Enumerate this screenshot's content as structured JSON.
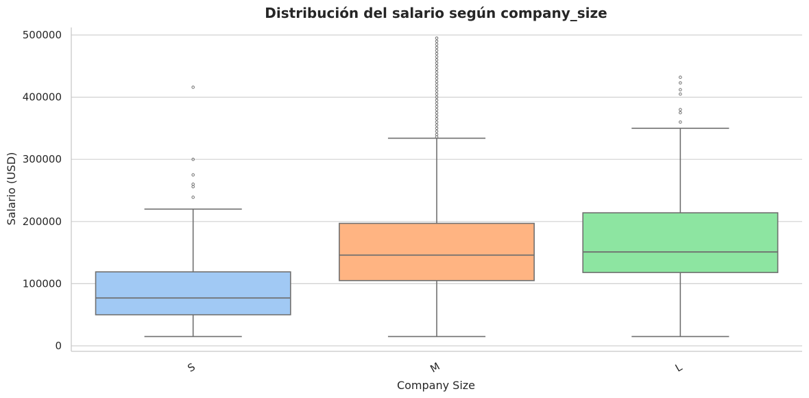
{
  "chart_data": {
    "type": "box",
    "title": "Distribución del salario según company_size",
    "xlabel": "Company Size",
    "ylabel": "Salario (USD)",
    "ylim": [
      -10000,
      520000
    ],
    "yticks": [
      0,
      100000,
      200000,
      300000,
      400000,
      500000
    ],
    "ytick_labels": [
      "0",
      "100000",
      "200000",
      "300000",
      "400000",
      "500000"
    ],
    "grid": "horizontal",
    "categories": [
      "S",
      "M",
      "L"
    ],
    "series": [
      {
        "category": "S",
        "color": "#a1c9f4",
        "whisker_low": 15000,
        "q1": 50000,
        "median": 77000,
        "q3": 119000,
        "whisker_high": 220000,
        "outliers": [
          239000,
          256000,
          260000,
          275000,
          300000,
          416000
        ]
      },
      {
        "category": "M",
        "color": "#ffb482",
        "whisker_low": 15000,
        "q1": 105000,
        "median": 146000,
        "q3": 197000,
        "whisker_high": 334000,
        "outliers": [
          336000,
          340000,
          345000,
          350000,
          355000,
          360000,
          365000,
          370000,
          375000,
          380000,
          385000,
          390000,
          395000,
          400000,
          405000,
          410000,
          415000,
          420000,
          425000,
          430000,
          435000,
          440000,
          445000,
          450000,
          455000,
          460000,
          465000,
          470000,
          475000,
          480000,
          485000,
          490000,
          495000
        ]
      },
      {
        "category": "L",
        "color": "#8de5a1",
        "whisker_low": 15000,
        "q1": 118000,
        "median": 151000,
        "q3": 214000,
        "whisker_high": 350000,
        "outliers": [
          360000,
          375000,
          380000,
          405000,
          412000,
          423000,
          432000
        ]
      }
    ]
  }
}
